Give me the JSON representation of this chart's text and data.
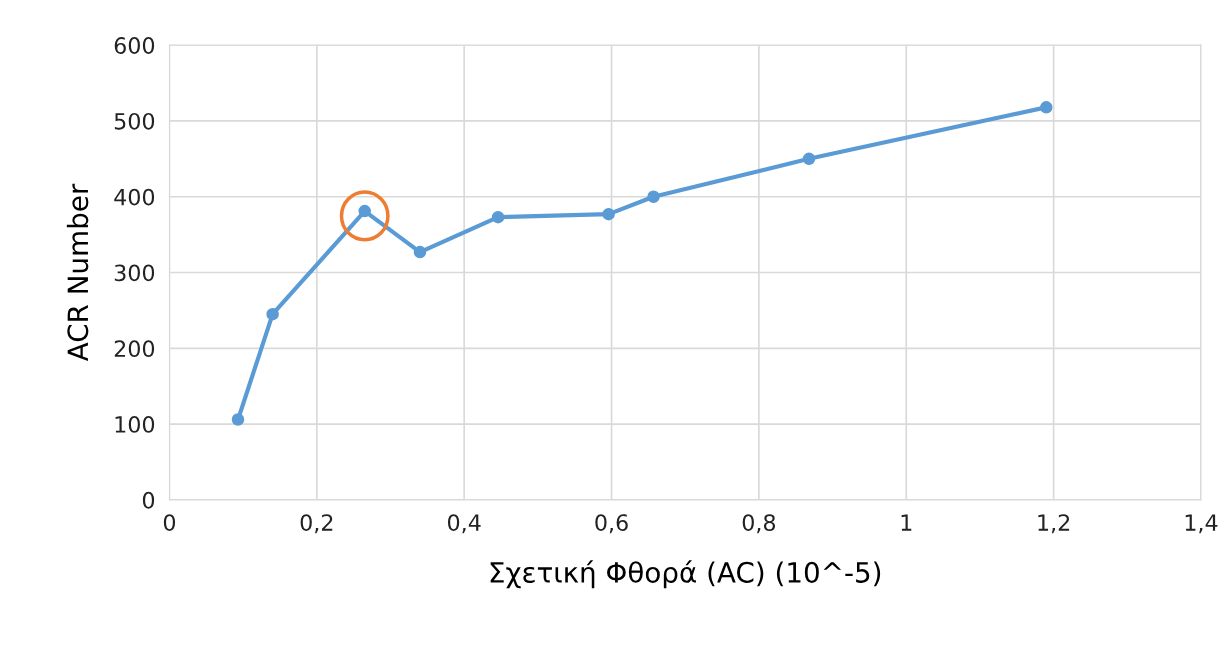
{
  "chart_data": {
    "type": "line",
    "xlabel": "Σχετική Φθορά (AC) (10^-5)",
    "ylabel": "ACR Number",
    "x": [
      0.093,
      0.14,
      0.265,
      0.34,
      0.446,
      0.596,
      0.657,
      0.868,
      1.19
    ],
    "series": [
      {
        "color": "#5b9bd5",
        "values": [
          106,
          245,
          381,
          327,
          373,
          377,
          400,
          450,
          518
        ]
      }
    ],
    "xlim": [
      0,
      1.4
    ],
    "ylim": [
      0,
      600
    ],
    "xticks": [
      0,
      {
        "value": 0.2,
        "label": "0,2"
      },
      {
        "value": 0.4,
        "label": "0,4"
      },
      {
        "value": 0.6,
        "label": "0,6"
      },
      {
        "value": 0.8,
        "label": "0,8"
      },
      1,
      {
        "value": 1.2,
        "label": "1,2"
      },
      {
        "value": 1.4,
        "label": "1,4"
      }
    ],
    "yticks": [
      0,
      100,
      200,
      300,
      400,
      500,
      600
    ],
    "grid": true,
    "marker": "circle",
    "line_style": "solid",
    "legend": false
  }
}
